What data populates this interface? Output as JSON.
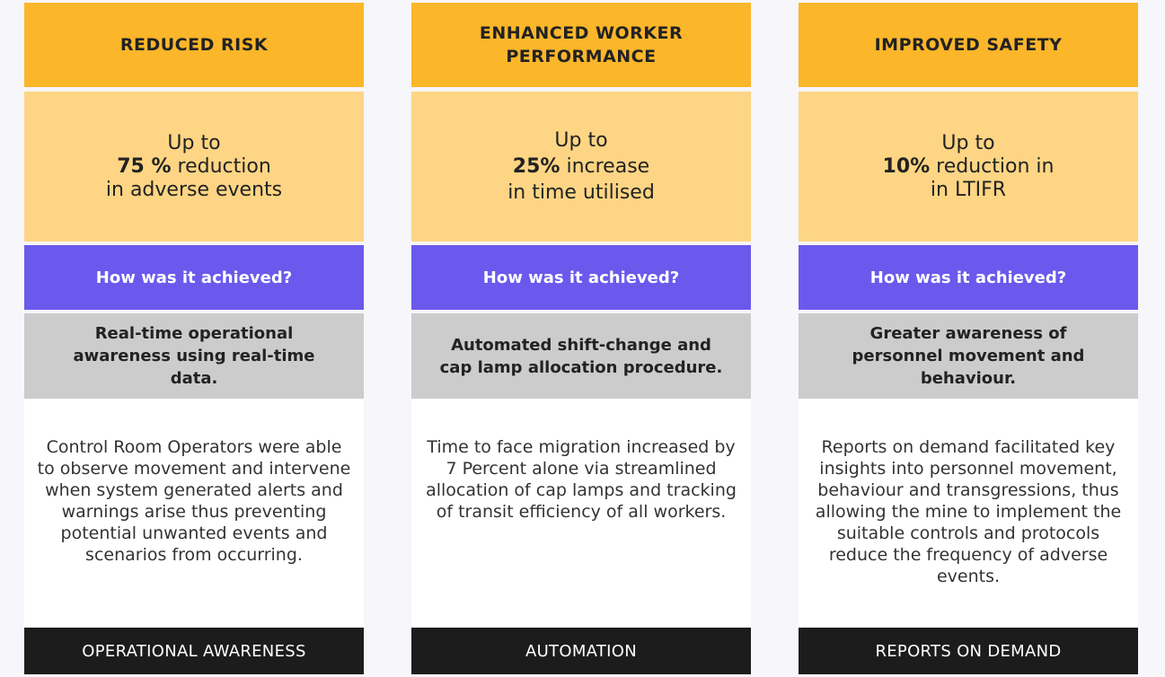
{
  "columns": [
    {
      "title": "REDUCED RISK",
      "stat": {
        "line1": "Up to",
        "value": "75 %",
        "line2_rest": " reduction",
        "line3": "in adverse events"
      },
      "how_label": "How was it achieved?",
      "method": "Real-time operational awareness using real-time data.",
      "description": "Control Room Operators were able to observe movement and intervene when system generated alerts and warnings arise thus preventing potential unwanted events and scenarios from occurring.",
      "footer": "OPERATIONAL AWARENESS"
    },
    {
      "title": "ENHANCED WORKER PERFORMANCE",
      "stat": {
        "line1": "Up to",
        "value": "25%",
        "line2_rest": " increase",
        "line3": "in time utilised"
      },
      "how_label": "How was it achieved?",
      "method": "Automated shift-change and cap lamp allocation procedure.",
      "description": "Time to face migration increased by 7 Percent alone via streamlined allocation of cap lamps and tracking of transit efficiency of all workers.",
      "footer": "AUTOMATION"
    },
    {
      "title": "IMPROVED SAFETY",
      "stat": {
        "line1": "Up to",
        "value": "10%",
        "line2_rest": " reduction in",
        "line3": "in LTIFR"
      },
      "how_label": "How was it achieved?",
      "method": "Greater awareness of personnel movement and behaviour.",
      "description": "Reports on demand facilitated key insights into personnel movement, behaviour and transgressions, thus allowing the mine to implement the suitable controls and protocols reduce the frequency of adverse events.",
      "footer": "REPORTS ON DEMAND"
    }
  ],
  "colors": {
    "title_bg": "#fbb62a",
    "stat_bg": "#fed584",
    "how_bg": "#6b59ed",
    "method_bg": "#cccccc",
    "desc_bg": "#ffffff",
    "footer_bg": "#1c1c1c"
  }
}
